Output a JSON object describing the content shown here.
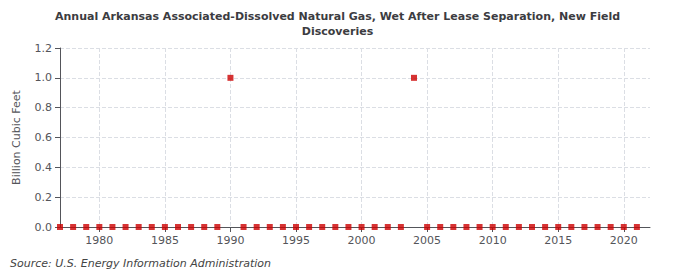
{
  "chart_data": {
    "type": "scatter",
    "title": "Annual Arkansas Associated-Dissolved Natural Gas, Wet After Lease Separation, New Field\nDiscoveries",
    "ylabel": "Billion Cubic Feet",
    "annotations": [
      "Source: U.S. Energy Information Administration"
    ],
    "x": [
      1977,
      1978,
      1979,
      1980,
      1981,
      1982,
      1983,
      1984,
      1985,
      1986,
      1987,
      1988,
      1989,
      1990,
      1991,
      1992,
      1993,
      1994,
      1995,
      1996,
      1997,
      1998,
      1999,
      2000,
      2001,
      2002,
      2003,
      2004,
      2005,
      2006,
      2007,
      2008,
      2009,
      2010,
      2011,
      2012,
      2013,
      2014,
      2015,
      2016,
      2017,
      2018,
      2019,
      2020,
      2021
    ],
    "values": [
      0.0,
      0.0,
      0.0,
      0.0,
      0.0,
      0.0,
      0.0,
      0.0,
      0.0,
      0.0,
      0.0,
      0.0,
      0.0,
      1.0,
      0.0,
      0.0,
      0.0,
      0.0,
      0.0,
      0.0,
      0.0,
      0.0,
      0.0,
      0.0,
      0.0,
      0.0,
      0.0,
      1.0,
      0.0,
      0.0,
      0.0,
      0.0,
      0.0,
      0.0,
      0.0,
      0.0,
      0.0,
      0.0,
      0.0,
      0.0,
      0.0,
      0.0,
      0.0,
      0.0,
      0.0
    ],
    "color": "#cc0000",
    "marker": "square",
    "xlim": [
      1977,
      2022
    ],
    "xticks": [
      1980,
      1985,
      1990,
      1995,
      2000,
      2005,
      2010,
      2015,
      2020
    ],
    "ylim": [
      0.0,
      1.2
    ],
    "yticks": [
      {
        "value": 0.0,
        "label": "0.0"
      },
      0.2,
      0.4,
      0.6,
      0.8,
      {
        "value": 1.0,
        "label": "1.0"
      },
      1.2
    ],
    "grid": true
  }
}
